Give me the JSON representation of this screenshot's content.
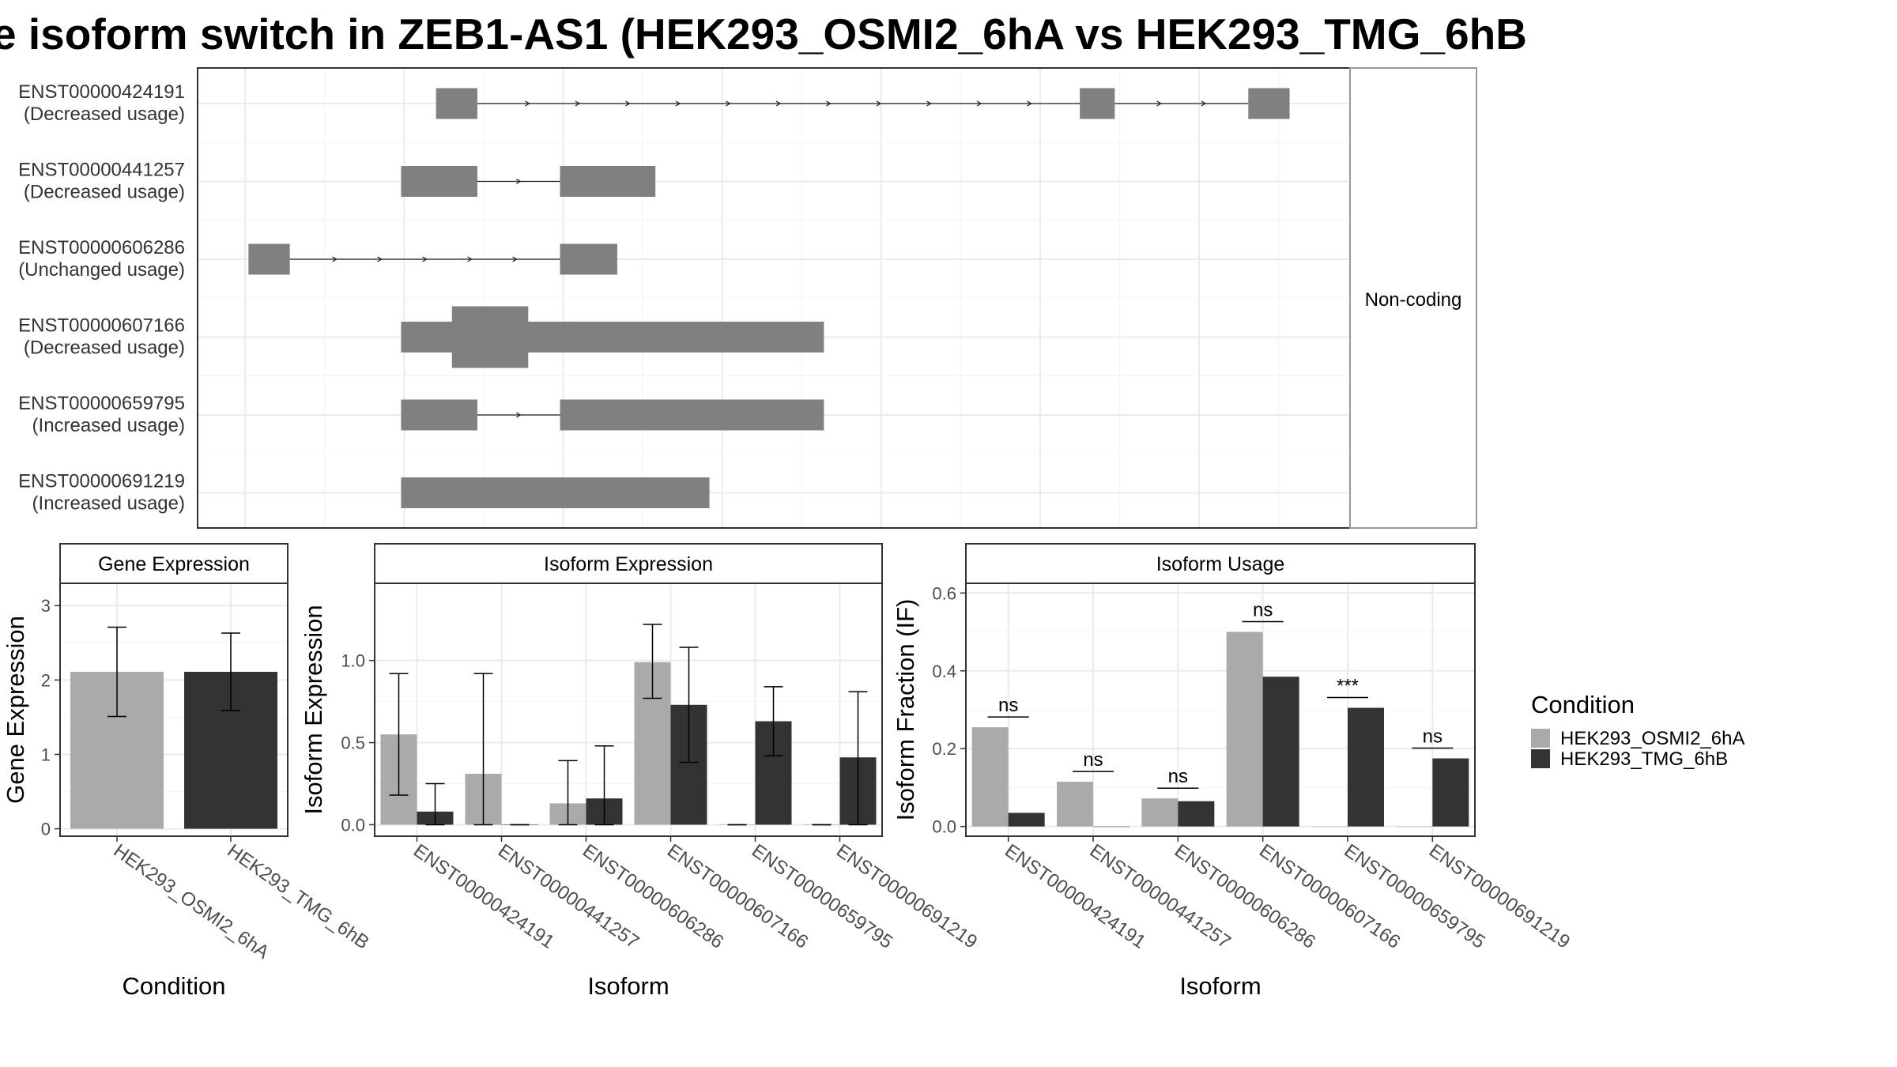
{
  "title": "e isoform switch in ZEB1-AS1 (HEK293_OSMI2_6hA vs HEK293_TMG_6hB",
  "colors": {
    "cond_a": "#aaaaaa",
    "cond_b": "#333333",
    "exon": "#808080",
    "grid": "#ebebeb",
    "strip": "#ffffff"
  },
  "structure": {
    "strip_label": "Non-coding",
    "x_range": [
      -0.3,
      6.95
    ],
    "isoforms": [
      {
        "id": "ENST00000424191",
        "usage": "(Decreased usage)",
        "exons": [
          [
            1.2,
            1.46,
            "s"
          ],
          [
            5.25,
            5.47,
            "s"
          ],
          [
            6.31,
            6.57,
            "s"
          ]
        ]
      },
      {
        "id": "ENST00000441257",
        "usage": "(Decreased usage)",
        "exons": [
          [
            0.98,
            1.46,
            "s"
          ],
          [
            1.98,
            2.58,
            "s"
          ]
        ]
      },
      {
        "id": "ENST00000606286",
        "usage": "(Unchanged usage)",
        "exons": [
          [
            0.02,
            0.28,
            "s"
          ],
          [
            1.98,
            2.34,
            "s"
          ]
        ]
      },
      {
        "id": "ENST00000607166",
        "usage": "(Decreased usage)",
        "exons": [
          [
            0.98,
            3.64,
            "s"
          ],
          [
            1.3,
            1.78,
            "t"
          ]
        ]
      },
      {
        "id": "ENST00000659795",
        "usage": "(Increased usage)",
        "exons": [
          [
            0.98,
            1.46,
            "s"
          ],
          [
            1.98,
            3.64,
            "s"
          ]
        ]
      },
      {
        "id": "ENST00000691219",
        "usage": "(Increased usage)",
        "exons": [
          [
            0.98,
            2.92,
            "s"
          ]
        ]
      }
    ]
  },
  "chart_data": [
    {
      "type": "bar",
      "title": "Gene Expression",
      "xlabel": "Condition",
      "ylabel": "Gene Expression",
      "categories": [
        "HEK293_OSMI2_6hA",
        "HEK293_TMG_6hB"
      ],
      "series": [
        {
          "name": "HEK293_OSMI2_6hA",
          "values": [
            2.11,
            null
          ],
          "ci": [
            [
              1.51,
              2.71
            ],
            null
          ]
        },
        {
          "name": "HEK293_TMG_6hB",
          "values": [
            null,
            2.11
          ],
          "ci": [
            null,
            [
              1.59,
              2.63
            ]
          ]
        }
      ],
      "ylim": [
        -0.1,
        3.3
      ],
      "yticks": [
        0,
        1,
        2,
        3
      ]
    },
    {
      "type": "bar",
      "title": "Isoform Expression",
      "xlabel": "Isoform",
      "ylabel": "Isoform Expression",
      "categories": [
        "ENST00000424191",
        "ENST00000441257",
        "ENST00000606286",
        "ENST00000607166",
        "ENST00000659795",
        "ENST00000691219"
      ],
      "series": [
        {
          "name": "HEK293_OSMI2_6hA",
          "values": [
            0.55,
            0.31,
            0.13,
            0.99,
            0.0,
            0.0
          ],
          "ci": [
            [
              0.18,
              0.92
            ],
            [
              0.0,
              0.92
            ],
            [
              0.0,
              0.39
            ],
            [
              0.77,
              1.22
            ],
            [
              0.0,
              0.0
            ],
            [
              0.0,
              0.0
            ]
          ]
        },
        {
          "name": "HEK293_TMG_6hB",
          "values": [
            0.08,
            0.0,
            0.16,
            0.73,
            0.63,
            0.41
          ],
          "ci": [
            [
              0.0,
              0.25
            ],
            [
              0.0,
              0.0
            ],
            [
              0.0,
              0.48
            ],
            [
              0.38,
              1.08
            ],
            [
              0.42,
              0.84
            ],
            [
              0.0,
              0.81
            ]
          ]
        }
      ],
      "ylim": [
        -0.07,
        1.47
      ],
      "yticks": [
        0.0,
        0.5,
        1.0
      ]
    },
    {
      "type": "bar",
      "title": "Isoform Usage",
      "xlabel": "Isoform",
      "ylabel": "Isoform Fraction (IF)",
      "categories": [
        "ENST00000424191",
        "ENST00000441257",
        "ENST00000606286",
        "ENST00000607166",
        "ENST00000659795",
        "ENST00000691219"
      ],
      "series": [
        {
          "name": "HEK293_OSMI2_6hA",
          "values": [
            0.255,
            0.115,
            0.072,
            0.5,
            0.0,
            0.0
          ]
        },
        {
          "name": "HEK293_TMG_6hB",
          "values": [
            0.035,
            0.0,
            0.065,
            0.385,
            0.305,
            0.175
          ]
        }
      ],
      "significance": [
        "ns",
        "ns",
        "ns",
        "ns",
        "***",
        "ns"
      ],
      "ylim": [
        -0.025,
        0.625
      ],
      "yticks": [
        0.0,
        0.2,
        0.4,
        0.6
      ]
    }
  ],
  "legend": {
    "title": "Condition",
    "items": [
      {
        "label": "HEK293_OSMI2_6hA",
        "color": "#aaaaaa"
      },
      {
        "label": "HEK293_TMG_6hB",
        "color": "#333333"
      }
    ]
  }
}
